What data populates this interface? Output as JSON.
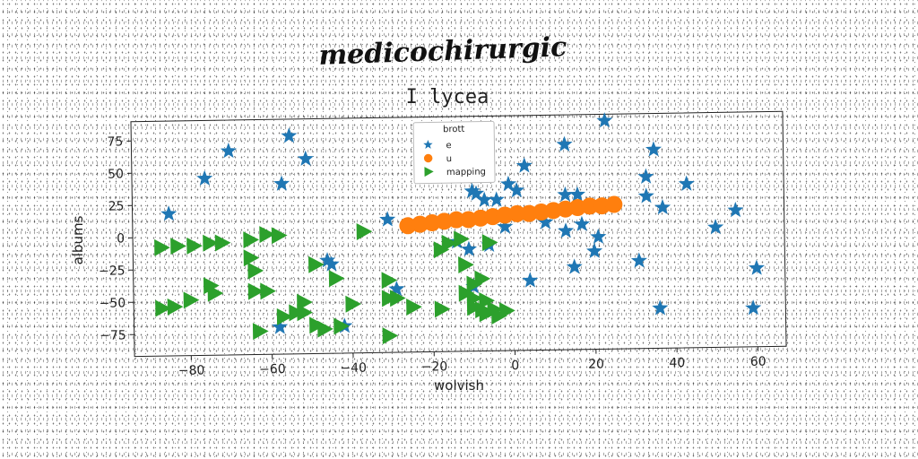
{
  "chart_data": {
    "type": "scatter",
    "supertitle": "medicochirurgic",
    "title": "I lycea",
    "xlabel": "wolvish",
    "ylabel": "albums",
    "xlim": [
      -94,
      67
    ],
    "ylim": [
      -92,
      90
    ],
    "xticks": [
      -80,
      -60,
      -40,
      -20,
      0,
      20,
      40,
      60
    ],
    "yticks": [
      75,
      50,
      25,
      0,
      -25,
      -50,
      -75
    ],
    "grid": false,
    "legend": {
      "title": "brott",
      "placement": "top-center"
    },
    "series": [
      {
        "name": "e",
        "marker": "star",
        "color": "#1f77b4",
        "points": [
          [
            -85,
            18
          ],
          [
            -76,
            45
          ],
          [
            -70,
            66
          ],
          [
            -55,
            77
          ],
          [
            -57,
            40
          ],
          [
            -51,
            59
          ],
          [
            -46,
            -20
          ],
          [
            -45,
            -23
          ],
          [
            -42,
            -71
          ],
          [
            -58,
            -71
          ],
          [
            -31,
            11
          ],
          [
            -29,
            -43
          ],
          [
            -14,
            -7
          ],
          [
            -11,
            -13
          ],
          [
            -10,
            -42
          ],
          [
            -10,
            32
          ],
          [
            -9,
            30
          ],
          [
            -7,
            25
          ],
          [
            -4,
            25
          ],
          [
            -6,
            -10
          ],
          [
            -1,
            37
          ],
          [
            1,
            32
          ],
          [
            3,
            51
          ],
          [
            4,
            -38
          ],
          [
            -2,
            4
          ],
          [
            8,
            7
          ],
          [
            13,
            67
          ],
          [
            13,
            28
          ],
          [
            13,
            0
          ],
          [
            15,
            -28
          ],
          [
            16,
            28
          ],
          [
            17,
            5
          ],
          [
            20,
            -16
          ],
          [
            21,
            -5
          ],
          [
            23,
            85
          ],
          [
            31,
            -24
          ],
          [
            33,
            26
          ],
          [
            33,
            41
          ],
          [
            35,
            62
          ],
          [
            36,
            -61
          ],
          [
            37,
            17
          ],
          [
            43,
            35
          ],
          [
            50,
            1
          ],
          [
            55,
            14
          ],
          [
            60,
            -31
          ],
          [
            59,
            -62
          ]
        ]
      },
      {
        "name": "u",
        "marker": "circle",
        "color": "#ff7f0e",
        "points": [
          [
            -26,
            6
          ],
          [
            -23,
            7
          ],
          [
            -20,
            8
          ],
          [
            -17,
            9
          ],
          [
            -14,
            10
          ],
          [
            -11,
            10
          ],
          [
            -8,
            11
          ],
          [
            -5,
            12
          ],
          [
            -2,
            13
          ],
          [
            1,
            14
          ],
          [
            4,
            14
          ],
          [
            7,
            15
          ],
          [
            10,
            16
          ],
          [
            13,
            17
          ],
          [
            16,
            18
          ],
          [
            19,
            19
          ],
          [
            22,
            19
          ],
          [
            25,
            20
          ]
        ]
      },
      {
        "name": "mapping",
        "marker": "triangle-right",
        "color": "#2ca02c",
        "points": [
          [
            -87,
            -8
          ],
          [
            -83,
            -7
          ],
          [
            -79,
            -7
          ],
          [
            -75,
            -5
          ],
          [
            -72,
            -5
          ],
          [
            -65,
            -3
          ],
          [
            -61,
            1
          ],
          [
            -58,
            0
          ],
          [
            -65,
            -17
          ],
          [
            -64,
            -27
          ],
          [
            -64,
            -43
          ],
          [
            -61,
            -43
          ],
          [
            -75,
            -38
          ],
          [
            -74,
            -44
          ],
          [
            -87,
            -55
          ],
          [
            -84,
            -54
          ],
          [
            -80,
            -49
          ],
          [
            -63,
            -74
          ],
          [
            -57,
            -63
          ],
          [
            -54,
            -60
          ],
          [
            -52,
            -52
          ],
          [
            -52,
            -60
          ],
          [
            -49,
            -70
          ],
          [
            -47,
            -73
          ],
          [
            -43,
            -71
          ],
          [
            -49,
            -23
          ],
          [
            -44,
            -34
          ],
          [
            -40,
            -54
          ],
          [
            -37,
            2
          ],
          [
            -31,
            -36
          ],
          [
            -31,
            -50
          ],
          [
            -29,
            -50
          ],
          [
            -25,
            -57
          ],
          [
            -31,
            -79
          ],
          [
            -18,
            -59
          ],
          [
            -10,
            -58
          ],
          [
            -8,
            -60
          ],
          [
            -5,
            -60
          ],
          [
            -2,
            -61
          ],
          [
            -7,
            -63
          ],
          [
            -4,
            -65
          ],
          [
            -12,
            -25
          ],
          [
            -8,
            -36
          ],
          [
            -12,
            -47
          ],
          [
            -10,
            -51
          ],
          [
            -7,
            -53
          ],
          [
            -10,
            -40
          ],
          [
            -6,
            -8
          ],
          [
            -18,
            -13
          ],
          [
            -16,
            -8
          ],
          [
            -13,
            -5
          ]
        ]
      }
    ]
  }
}
